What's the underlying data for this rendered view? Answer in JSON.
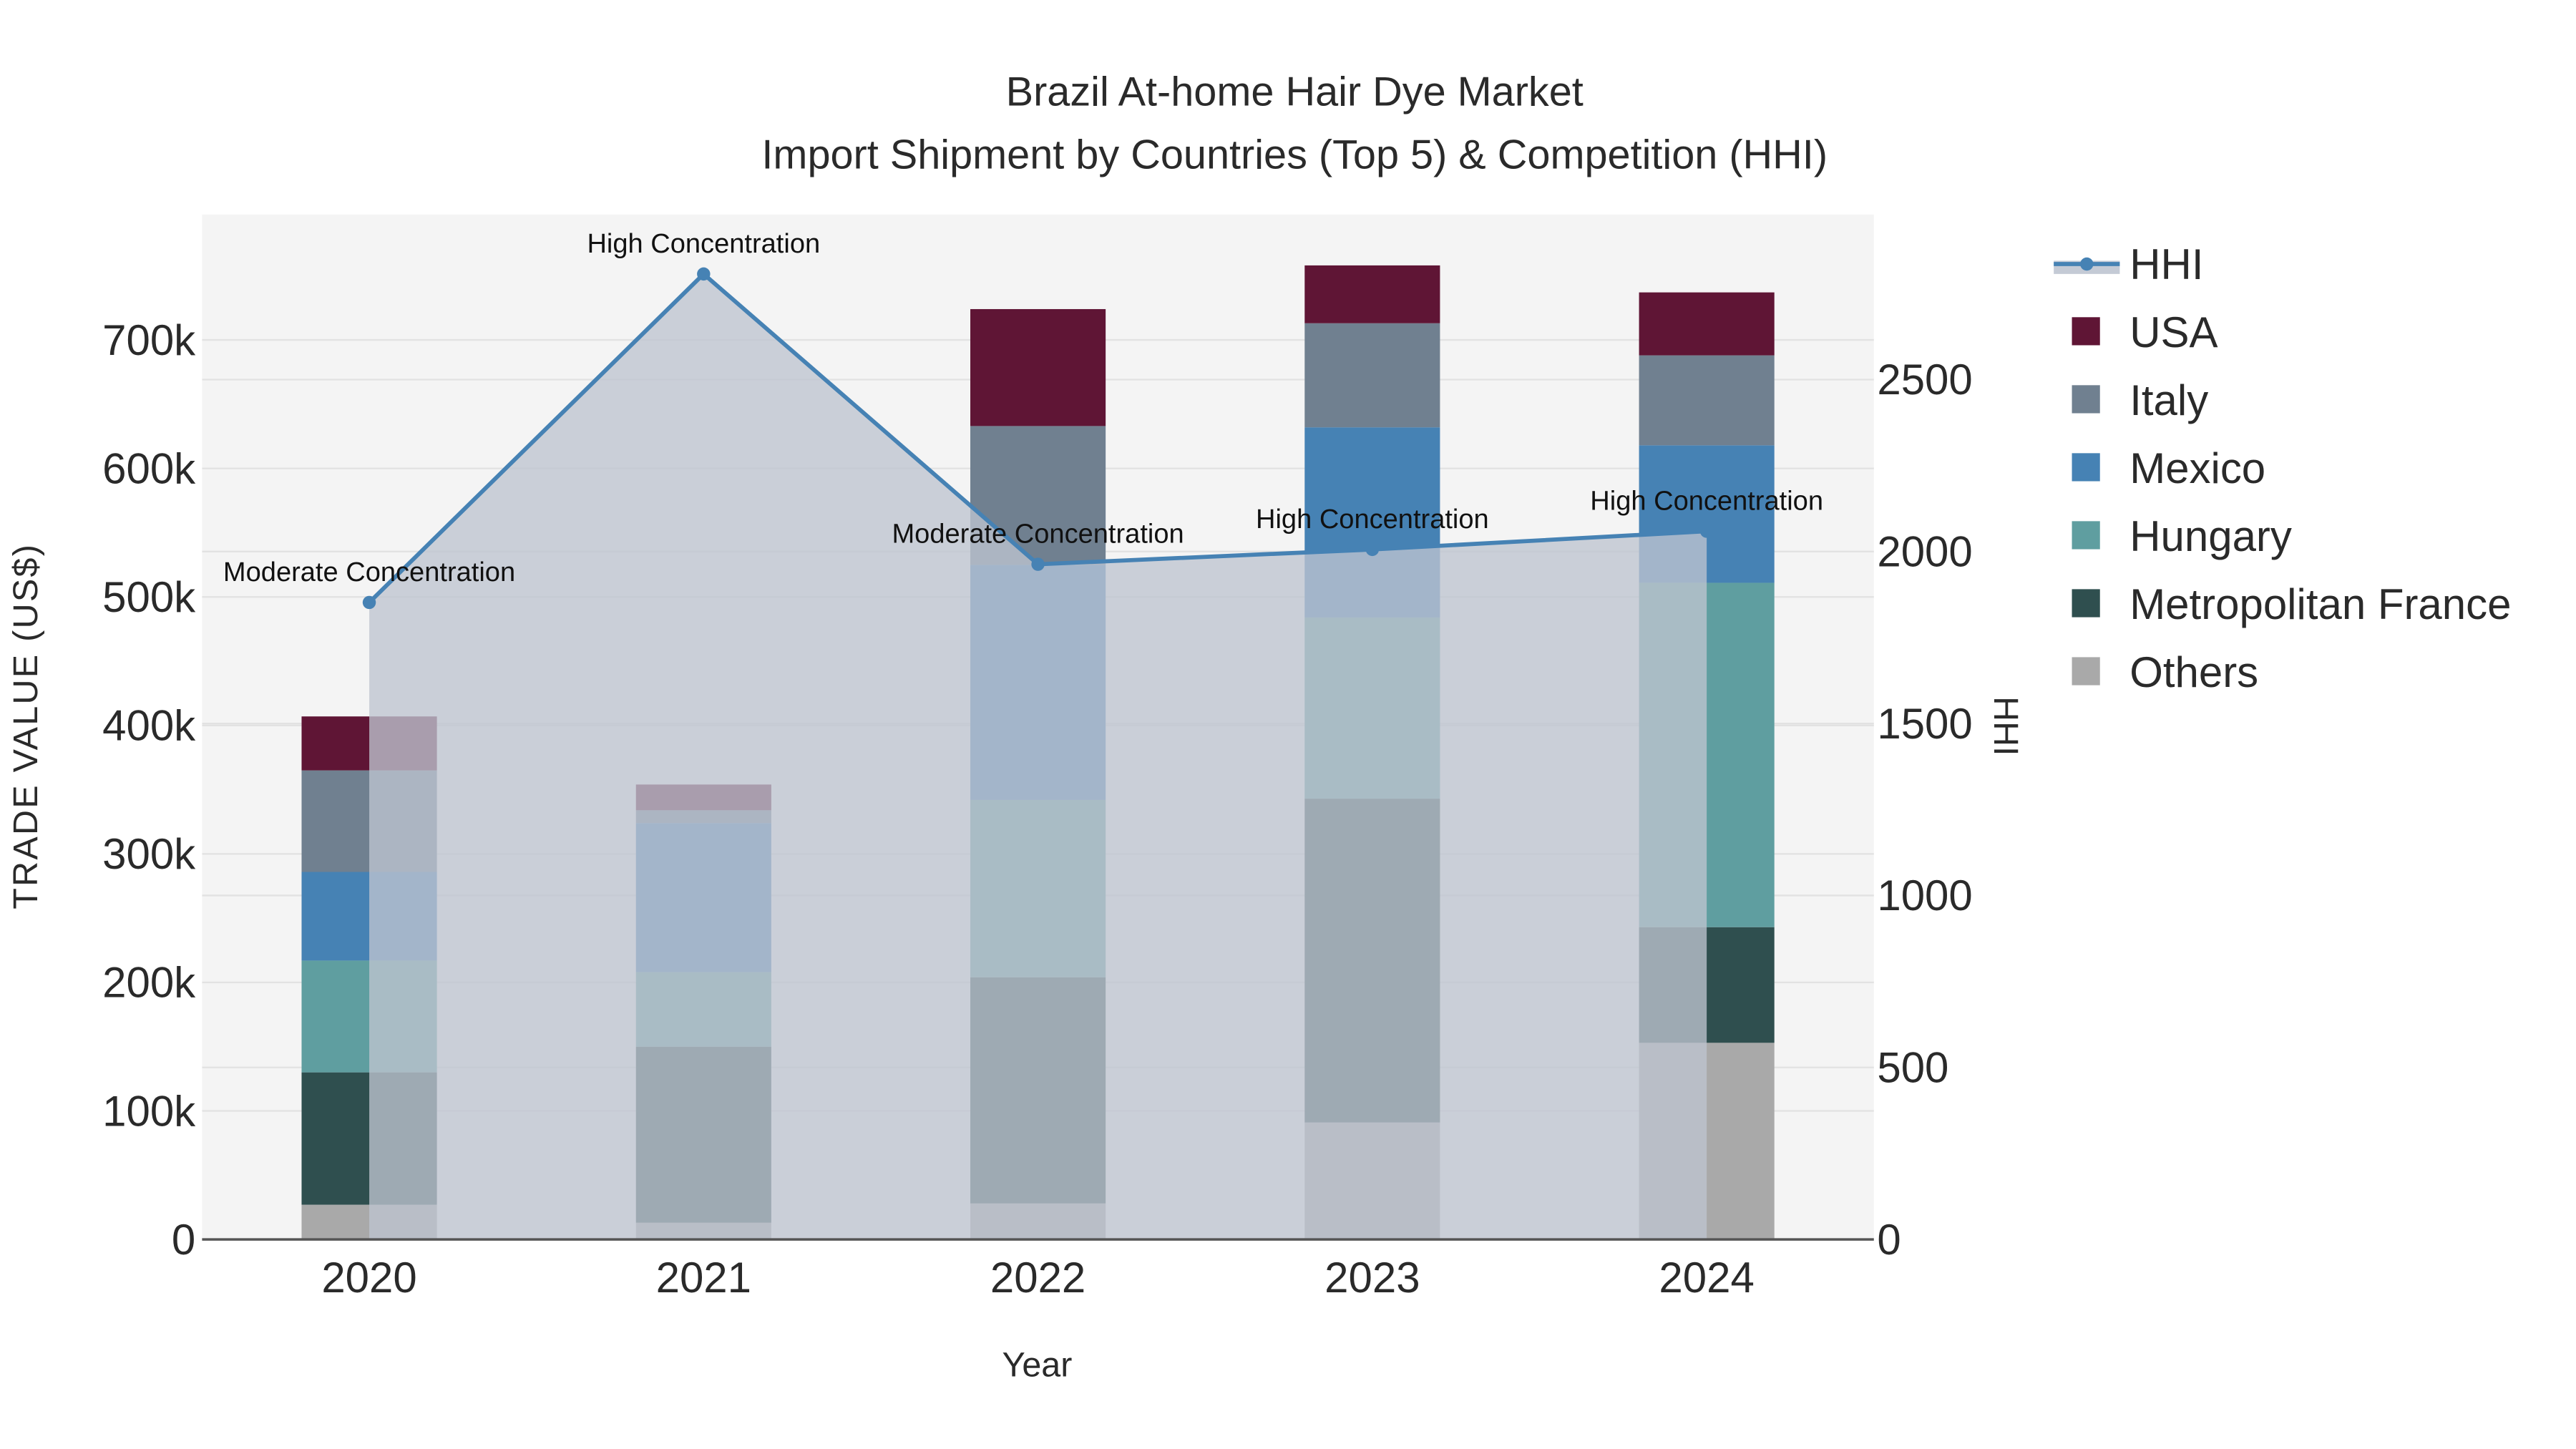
{
  "chart_data": {
    "type": "bar",
    "title": "Brazil At-home Hair Dye Market",
    "subtitle": "Import Shipment by Countries (Top 5) & Competition (HHI)",
    "xlabel": "Year",
    "ylabel": "TRADE VALUE (US$)",
    "y2label": "HHI",
    "categories": [
      "2020",
      "2021",
      "2022",
      "2023",
      "2024"
    ],
    "ylim": [
      0,
      800000
    ],
    "y_ticks": [
      0,
      100000,
      200000,
      300000,
      400000,
      500000,
      600000,
      700000
    ],
    "y_tick_labels": [
      "0",
      "100k",
      "200k",
      "300k",
      "400k",
      "500k",
      "600k",
      "700k"
    ],
    "y2lim": [
      0,
      2980
    ],
    "y2_ticks": [
      0,
      500,
      1000,
      1500,
      2000,
      2500
    ],
    "y2_tick_labels": [
      "0",
      "500",
      "1000",
      "1500",
      "2000",
      "2500"
    ],
    "stacking": "stacked",
    "series": [
      {
        "name": "Others",
        "color": "#a9a9a9",
        "values": [
          27000,
          13000,
          28000,
          91000,
          153000
        ]
      },
      {
        "name": "Metropolitan France",
        "color": "#2f4f4f",
        "values": [
          103000,
          137000,
          176000,
          252000,
          90000
        ]
      },
      {
        "name": "Hungary",
        "color": "#5f9ea0",
        "values": [
          87000,
          58000,
          138000,
          141000,
          268000
        ]
      },
      {
        "name": "Mexico",
        "color": "#4682b4",
        "values": [
          69000,
          116000,
          183000,
          148000,
          107000
        ]
      },
      {
        "name": "Italy",
        "color": "#708090",
        "values": [
          79000,
          10000,
          108000,
          81000,
          70000
        ]
      },
      {
        "name": "USA",
        "color": "#5f1535",
        "values": [
          42000,
          20000,
          91000,
          45000,
          49000
        ]
      }
    ],
    "hhi": {
      "name": "HHI",
      "color": "#4682b4",
      "values": [
        1852,
        2807,
        1963,
        2006,
        2059
      ],
      "annotations": [
        "Moderate Concentration",
        "High Concentration",
        "Moderate Concentration",
        "High Concentration",
        "High Concentration"
      ]
    },
    "legend": [
      "HHI",
      "USA",
      "Italy",
      "Mexico",
      "Hungary",
      "Metropolitan France",
      "Others"
    ],
    "legend_placement": "right",
    "grid": true
  }
}
